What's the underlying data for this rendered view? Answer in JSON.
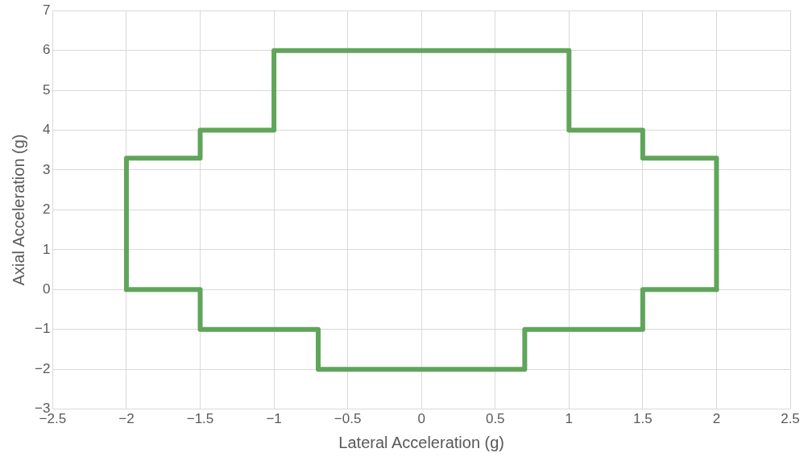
{
  "chart_data": {
    "type": "line",
    "xlabel": "Lateral Acceleration (g)",
    "ylabel": "Axial Acceleration (g)",
    "xlim": [
      -2.5,
      2.5
    ],
    "xticks": [
      -2.5,
      -2,
      -1.5,
      -1,
      -0.5,
      0,
      0.5,
      1,
      1.5,
      2,
      2.5
    ],
    "ylim": [
      -3,
      7
    ],
    "yticks": [
      -3,
      -2,
      -1,
      0,
      1,
      2,
      3,
      4,
      5,
      6,
      7
    ],
    "grid": true,
    "legend": false,
    "marker": "none",
    "line_style": "solid",
    "series": [
      {
        "color": "#5fa55a",
        "x": [
          -2,
          -2,
          -1.5,
          -1.5,
          -1,
          -1,
          1,
          1,
          1.5,
          1.5,
          2,
          2
        ],
        "values": [
          0,
          3.3,
          3.3,
          4,
          4,
          6,
          6,
          4,
          4,
          3.3,
          3.3,
          0
        ]
      },
      {
        "color": "#5fa55a",
        "x": [
          -2,
          -1.5,
          -1.5,
          -0.7,
          -0.7,
          0.7,
          0.7,
          1.5,
          1.5,
          2
        ],
        "values": [
          0,
          0,
          -1,
          -1,
          -2,
          -2,
          -1,
          -1,
          0,
          0
        ]
      }
    ]
  }
}
